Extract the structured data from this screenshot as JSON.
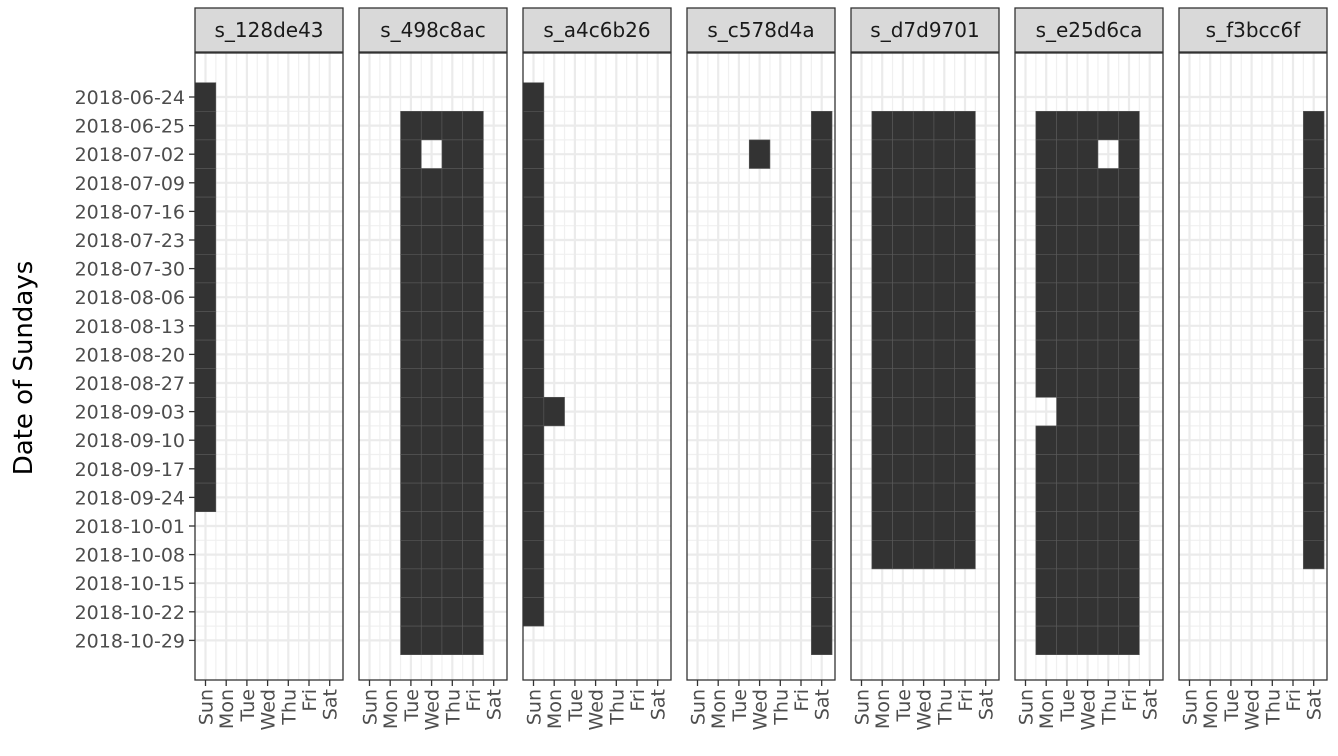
{
  "chart_data": {
    "type": "heatmap",
    "ylabel": "Date of Sundays",
    "xlabel": "",
    "weeks": [
      "2018-06-24",
      "2018-06-25",
      "2018-07-02",
      "2018-07-09",
      "2018-07-16",
      "2018-07-23",
      "2018-07-30",
      "2018-08-06",
      "2018-08-13",
      "2018-08-20",
      "2018-08-27",
      "2018-09-03",
      "2018-09-10",
      "2018-09-17",
      "2018-09-24",
      "2018-10-01",
      "2018-10-08",
      "2018-10-15",
      "2018-10-22",
      "2018-10-29"
    ],
    "days": [
      "Sun",
      "Mon",
      "Tue",
      "Wed",
      "Thu",
      "Fri",
      "Sat"
    ],
    "grid": true,
    "fill_color": "#333333",
    "panels": [
      {
        "name": "s_128de43",
        "cells": [
          [
            "2018-06-24",
            "Sun"
          ],
          [
            "2018-06-25",
            "Sun"
          ],
          [
            "2018-07-02",
            "Sun"
          ],
          [
            "2018-07-09",
            "Sun"
          ],
          [
            "2018-07-16",
            "Sun"
          ],
          [
            "2018-07-23",
            "Sun"
          ],
          [
            "2018-07-30",
            "Sun"
          ],
          [
            "2018-08-06",
            "Sun"
          ],
          [
            "2018-08-13",
            "Sun"
          ],
          [
            "2018-08-20",
            "Sun"
          ],
          [
            "2018-08-27",
            "Sun"
          ],
          [
            "2018-09-03",
            "Sun"
          ],
          [
            "2018-09-10",
            "Sun"
          ],
          [
            "2018-09-17",
            "Sun"
          ],
          [
            "2018-09-24",
            "Sun"
          ]
        ]
      },
      {
        "name": "s_498c8ac",
        "range": {
          "from": "2018-06-25",
          "to": "2018-10-29",
          "days": [
            "Tue",
            "Wed",
            "Thu",
            "Fri"
          ]
        },
        "exclude": [
          [
            "2018-07-02",
            "Wed"
          ]
        ]
      },
      {
        "name": "s_a4c6b26",
        "range": {
          "from": "2018-06-24",
          "to": "2018-10-22",
          "days": [
            "Sun"
          ]
        },
        "extra": [
          [
            "2018-09-03",
            "Mon"
          ]
        ]
      },
      {
        "name": "s_c578d4a",
        "range": {
          "from": "2018-06-25",
          "to": "2018-10-29",
          "days": [
            "Sat"
          ]
        },
        "extra": [
          [
            "2018-07-02",
            "Wed"
          ]
        ]
      },
      {
        "name": "s_d7d9701",
        "range": {
          "from": "2018-06-25",
          "to": "2018-10-08",
          "days": [
            "Mon",
            "Tue",
            "Wed",
            "Thu",
            "Fri"
          ]
        }
      },
      {
        "name": "s_e25d6ca",
        "range": {
          "from": "2018-06-25",
          "to": "2018-10-29",
          "days": [
            "Mon",
            "Tue",
            "Wed",
            "Thu",
            "Fri"
          ]
        },
        "exclude": [
          [
            "2018-07-02",
            "Thu"
          ],
          [
            "2018-09-03",
            "Mon"
          ]
        ]
      },
      {
        "name": "s_f3bcc6f",
        "range": {
          "from": "2018-06-25",
          "to": "2018-10-08",
          "days": [
            "Sat"
          ]
        }
      }
    ]
  }
}
